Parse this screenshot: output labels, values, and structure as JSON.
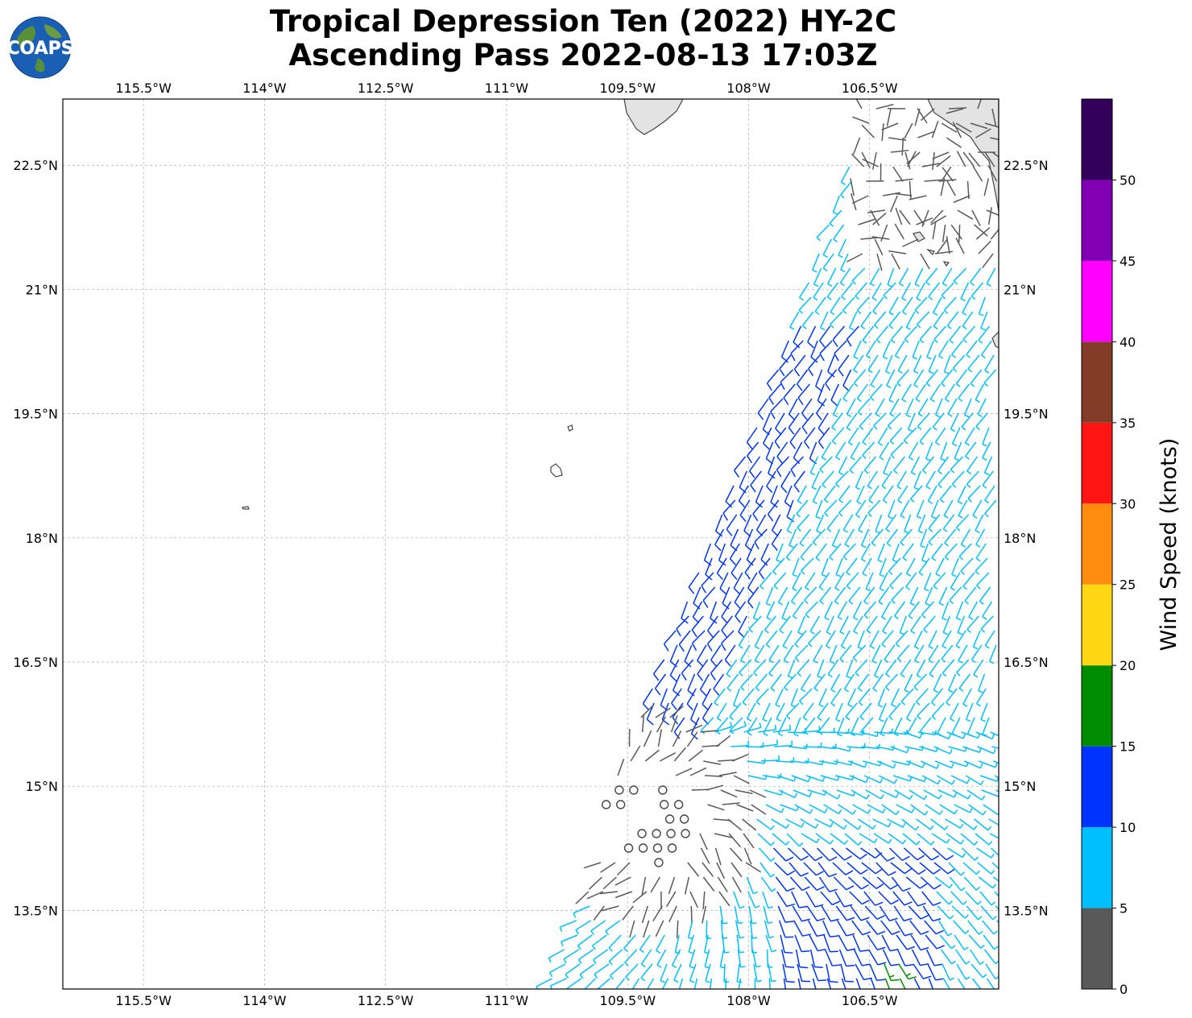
{
  "title": {
    "line1": "Tropical Depression Ten (2022) HY-2C",
    "line2": "Ascending Pass 2022-08-13 17:03Z"
  },
  "logo": {
    "text": "COAPS",
    "icon": "globe-icon"
  },
  "map": {
    "lon_range": [
      -116.5,
      -104.9
    ],
    "lat_range": [
      12.55,
      23.3
    ],
    "x_ticks": [
      {
        "lon": -115.5,
        "label": "115.5°W"
      },
      {
        "lon": -114.0,
        "label": "114°W"
      },
      {
        "lon": -112.5,
        "label": "112.5°W"
      },
      {
        "lon": -111.0,
        "label": "111°W"
      },
      {
        "lon": -109.5,
        "label": "109.5°W"
      },
      {
        "lon": -108.0,
        "label": "108°W"
      },
      {
        "lon": -106.5,
        "label": "106.5°W"
      }
    ],
    "y_ticks": [
      {
        "lat": 22.5,
        "label": "22.5°N"
      },
      {
        "lat": 21.0,
        "label": "21°N"
      },
      {
        "lat": 19.5,
        "label": "19.5°N"
      },
      {
        "lat": 18.0,
        "label": "18°N"
      },
      {
        "lat": 16.5,
        "label": "16.5°N"
      },
      {
        "lat": 15.0,
        "label": "15°N"
      },
      {
        "lat": 13.5,
        "label": "13.5°N"
      }
    ],
    "grid": true,
    "calm_circle_color": "#444444",
    "land_color": "#e6e6e6",
    "coast_color": "#444444"
  },
  "colorbar": {
    "label": "Wind Speed (knots)",
    "min": 0,
    "max": 55,
    "bins": [
      {
        "from": 0,
        "to": 5,
        "color": "#595959"
      },
      {
        "from": 5,
        "to": 10,
        "color": "#00bfff"
      },
      {
        "from": 10,
        "to": 15,
        "color": "#0033ff"
      },
      {
        "from": 15,
        "to": 20,
        "color": "#008c00"
      },
      {
        "from": 20,
        "to": 25,
        "color": "#ffd714"
      },
      {
        "from": 25,
        "to": 30,
        "color": "#ff8c0f"
      },
      {
        "from": 30,
        "to": 35,
        "color": "#ff1414"
      },
      {
        "from": 35,
        "to": 40,
        "color": "#823c28"
      },
      {
        "from": 40,
        "to": 45,
        "color": "#ff00ff"
      },
      {
        "from": 45,
        "to": 50,
        "color": "#8200b4"
      },
      {
        "from": 50,
        "to": 55,
        "color": "#32005a"
      }
    ],
    "ticks": [
      "0",
      "5",
      "10",
      "15",
      "20",
      "25",
      "30",
      "35",
      "40",
      "45",
      "50"
    ]
  },
  "chart_data": {
    "type": "scatter",
    "description_units": "wind barbs: lon (deg E), lat (deg N), speed (knots), direction wind blows from (deg)",
    "swath_region": {
      "west_edge_lons": [
        [
          -111.0,
          12.6
        ],
        [
          -107.5,
          22.5
        ]
      ],
      "east_edge_lon": -104.9
    },
    "depression_center": {
      "lon": -109.2,
      "lat": 14.6
    },
    "sample_barbs": [
      {
        "lon": -106.8,
        "lat": 12.7,
        "speed": 16,
        "dir": 250
      },
      {
        "lon": -109.2,
        "lat": 14.6,
        "speed": 0,
        "dir": 0
      },
      {
        "lon": -108.3,
        "lat": 18.0,
        "speed": 12,
        "dir": 200
      },
      {
        "lon": -106.5,
        "lat": 20.0,
        "speed": 8,
        "dir": 215
      }
    ]
  }
}
